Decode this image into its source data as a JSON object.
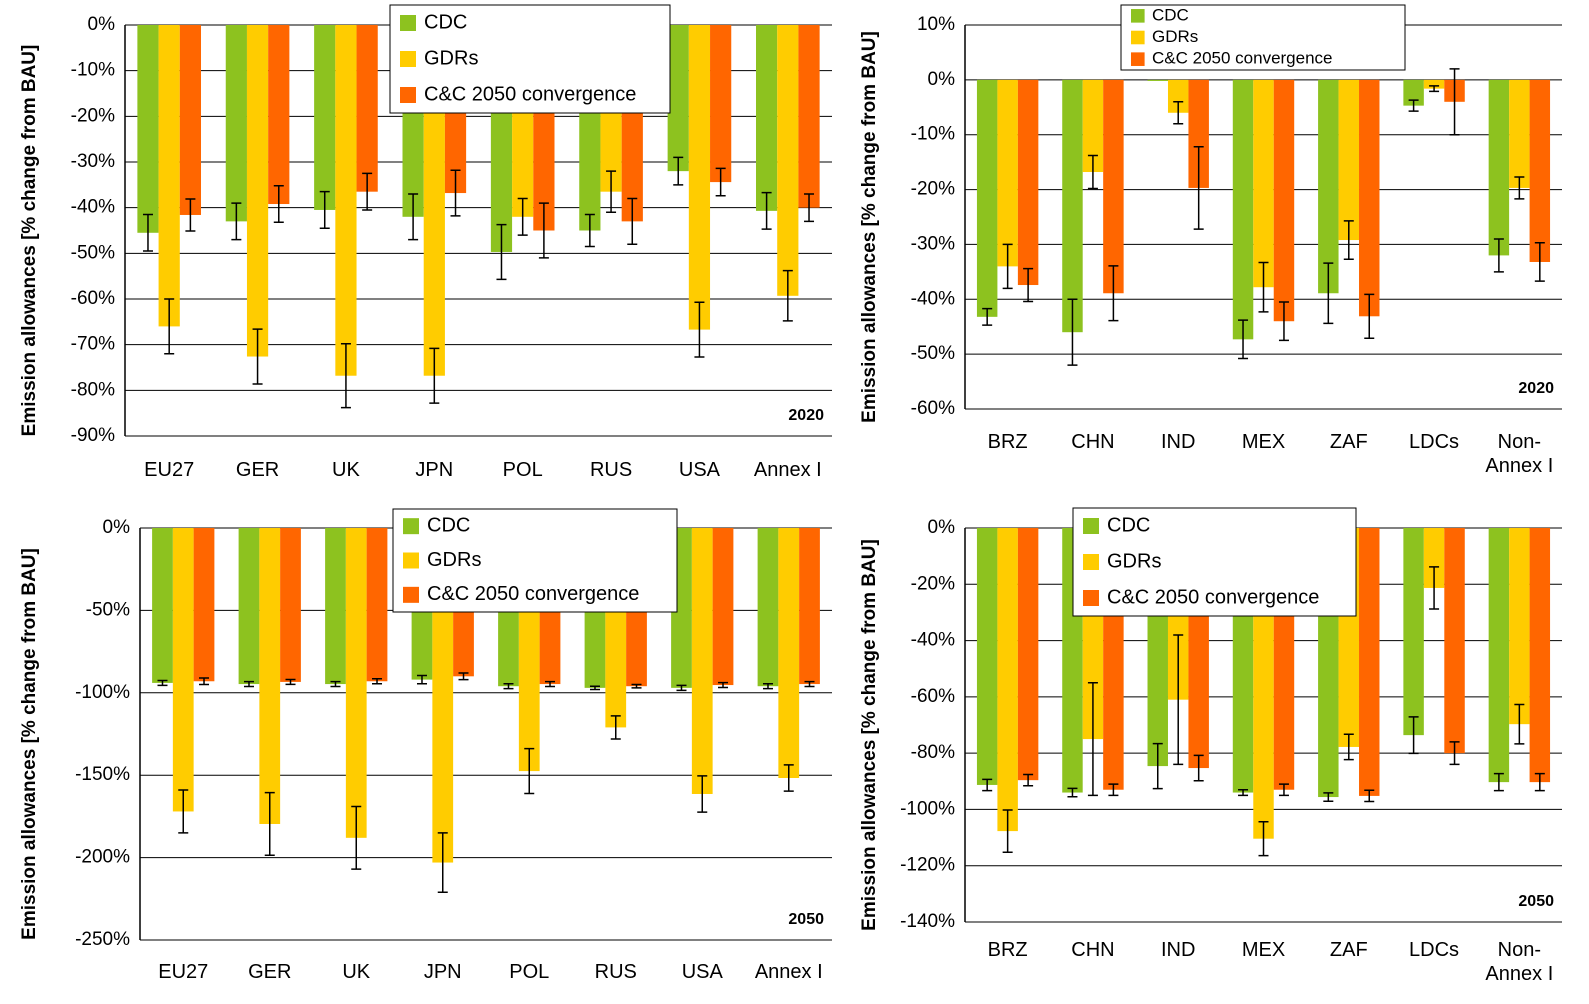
{
  "chart_data": [
    {
      "type": "bar",
      "ylabel": "Emission allowances [% change from BAU]",
      "annotation": "2020",
      "categories": [
        "EU27",
        "GER",
        "UK",
        "JPN",
        "POL",
        "RUS",
        "USA",
        "Annex I"
      ],
      "series": [
        {
          "name": "CDC",
          "color": "#8dc21f",
          "values": [
            -45.5,
            -43,
            -40.5,
            -42,
            -49.7,
            -45,
            -32,
            -40.7
          ],
          "error": [
            4,
            4,
            4,
            5,
            6,
            3.5,
            3,
            4
          ]
        },
        {
          "name": "GDRs",
          "color": "#ffcc00",
          "values": [
            -66,
            -72.6,
            -76.8,
            -76.8,
            -42,
            -36.5,
            -66.7,
            -59.3
          ],
          "error": [
            6,
            6,
            7,
            6,
            4,
            4.5,
            6,
            5.5
          ]
        },
        {
          "name": "C&C 2050 convergence",
          "color": "#ff6600",
          "values": [
            -41.6,
            -39.2,
            -36.5,
            -36.8,
            -45,
            -43,
            -34.4,
            -40
          ],
          "error": [
            3.5,
            4,
            4,
            5,
            6,
            5,
            3,
            3
          ]
        }
      ],
      "ylim": [
        -90,
        0
      ],
      "yticks": [
        {
          "value": 0,
          "label": "0%"
        },
        {
          "value": -10,
          "label": "-10%"
        },
        {
          "value": -20,
          "label": "-20%"
        },
        {
          "value": -30,
          "label": "-30%"
        },
        {
          "value": -40,
          "label": "-40%"
        },
        {
          "value": -50,
          "label": "-50%"
        },
        {
          "value": -60,
          "label": "-60%"
        },
        {
          "value": -70,
          "label": "-70%"
        },
        {
          "value": -80,
          "label": "-80%"
        },
        {
          "value": -90,
          "label": "-90%"
        }
      ],
      "grid": true
    },
    {
      "type": "bar",
      "ylabel": "Emission allowances [% change from BAU]",
      "annotation": "2020",
      "categories": [
        "BRZ",
        "CHN",
        "IND",
        "MEX",
        "ZAF",
        "LDCs",
        "Non-Annex I"
      ],
      "series": [
        {
          "name": "CDC",
          "color": "#8dc21f",
          "values": [
            -43.2,
            -46,
            -0.2,
            -47.3,
            -38.9,
            -4.7,
            -32
          ],
          "error": [
            1.5,
            6,
            0,
            3.5,
            5.5,
            1,
            3
          ]
        },
        {
          "name": "GDRs",
          "color": "#ffcc00",
          "values": [
            -34,
            -16.8,
            -6,
            -37.8,
            -29.2,
            -1.6,
            -19.7
          ],
          "error": [
            4,
            3,
            2,
            4.5,
            3.5,
            0.5,
            2
          ]
        },
        {
          "name": "C&C 2050 convergence",
          "color": "#ff6600",
          "values": [
            -37.4,
            -38.9,
            -19.7,
            -44,
            -43.1,
            -4,
            -33.2
          ],
          "error": [
            3,
            5,
            7.5,
            3.5,
            4,
            6,
            3.5
          ]
        }
      ],
      "ylim": [
        -60,
        10
      ],
      "yticks": [
        {
          "value": 10,
          "label": "10%"
        },
        {
          "value": 0,
          "label": "0%"
        },
        {
          "value": -10,
          "label": "-10%"
        },
        {
          "value": -20,
          "label": "-20%"
        },
        {
          "value": -30,
          "label": "-30%"
        },
        {
          "value": -40,
          "label": "-40%"
        },
        {
          "value": -50,
          "label": "-50%"
        },
        {
          "value": -60,
          "label": "-60%"
        }
      ],
      "grid": true
    },
    {
      "type": "bar",
      "ylabel": "Emission allowances [% change from BAU]",
      "annotation": "2050",
      "categories": [
        "EU27",
        "GER",
        "UK",
        "JPN",
        "POL",
        "RUS",
        "USA",
        "Annex I"
      ],
      "series": [
        {
          "name": "CDC",
          "color": "#8dc21f",
          "values": [
            -94,
            -94.7,
            -94.7,
            -92,
            -96,
            -97,
            -97,
            -96
          ],
          "error": [
            1.5,
            1.5,
            1.5,
            2.5,
            1.5,
            1,
            1.5,
            1.5
          ]
        },
        {
          "name": "GDRs",
          "color": "#ffcc00",
          "values": [
            -172,
            -179.6,
            -188,
            -203,
            -147.5,
            -121,
            -161.4,
            -151.7
          ],
          "error": [
            13,
            19,
            19,
            18,
            13.6,
            7,
            11,
            8
          ]
        },
        {
          "name": "C&C 2050 convergence",
          "color": "#ff6600",
          "values": [
            -93,
            -93.4,
            -93,
            -90,
            -94.7,
            -96,
            -95.3,
            -94.7
          ],
          "error": [
            2,
            1.5,
            1.5,
            2,
            1.5,
            1,
            1.5,
            1.5
          ]
        }
      ],
      "ylim": [
        -250,
        0
      ],
      "yticks": [
        {
          "value": 0,
          "label": "0%"
        },
        {
          "value": -50,
          "label": "-50%"
        },
        {
          "value": -100,
          "label": "-100%"
        },
        {
          "value": -150,
          "label": "-150%"
        },
        {
          "value": -200,
          "label": "-200%"
        },
        {
          "value": -250,
          "label": "-250%"
        }
      ],
      "grid": true
    },
    {
      "type": "bar",
      "ylabel": "Emission allowances [% change from BAU]",
      "annotation": "2050",
      "categories": [
        "BRZ",
        "CHN",
        "IND",
        "MEX",
        "ZAF",
        "LDCs",
        "Non-Annex I"
      ],
      "series": [
        {
          "name": "CDC",
          "color": "#8dc21f",
          "values": [
            -91.3,
            -94,
            -84.6,
            -94,
            -95.6,
            -73.6,
            -90.3
          ],
          "error": [
            2,
            1.5,
            8,
            1,
            1.5,
            6.5,
            3
          ]
        },
        {
          "name": "GDRs",
          "color": "#ffcc00",
          "values": [
            -107.7,
            -75,
            -61,
            -110.4,
            -77.8,
            -21.3,
            -69.7
          ],
          "error": [
            7.5,
            20,
            23,
            6,
            4.5,
            7.5,
            7
          ]
        },
        {
          "name": "C&C 2050 convergence",
          "color": "#ff6600",
          "values": [
            -89.6,
            -93,
            -85.3,
            -93,
            -95.2,
            -80,
            -90.3
          ],
          "error": [
            2,
            2,
            4.5,
            2,
            2,
            4,
            3
          ]
        }
      ],
      "ylim": [
        -140,
        0
      ],
      "yticks": [
        {
          "value": 0,
          "label": "0%"
        },
        {
          "value": -20,
          "label": "-20%"
        },
        {
          "value": -40,
          "label": "-40%"
        },
        {
          "value": -60,
          "label": "-60%"
        },
        {
          "value": -80,
          "label": "-80%"
        },
        {
          "value": -100,
          "label": "-100%"
        },
        {
          "value": -120,
          "label": "-120%"
        },
        {
          "value": -140,
          "label": "-140%"
        }
      ],
      "grid": true
    }
  ]
}
